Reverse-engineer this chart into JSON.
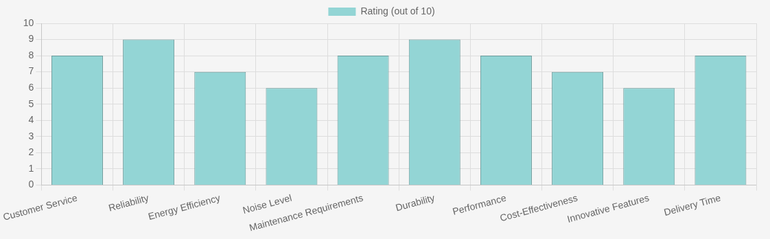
{
  "chart_data": {
    "type": "bar",
    "categories": [
      "Customer Service",
      "Reliability",
      "Energy Efficiency",
      "Noise Level",
      "Maintenance Requirements",
      "Durability",
      "Performance",
      "Cost-Effectiveness",
      "Innovative Features",
      "Delivery Time"
    ],
    "series": [
      {
        "name": "Rating (out of 10)",
        "color": "#93d5d5",
        "values": [
          8,
          9,
          7,
          6,
          8,
          9,
          8,
          7,
          6,
          8
        ]
      }
    ],
    "ylim": [
      0,
      10
    ],
    "yticks": [
      0,
      1,
      2,
      3,
      4,
      5,
      6,
      7,
      8,
      9,
      10
    ],
    "grid": true,
    "legend": "top"
  }
}
